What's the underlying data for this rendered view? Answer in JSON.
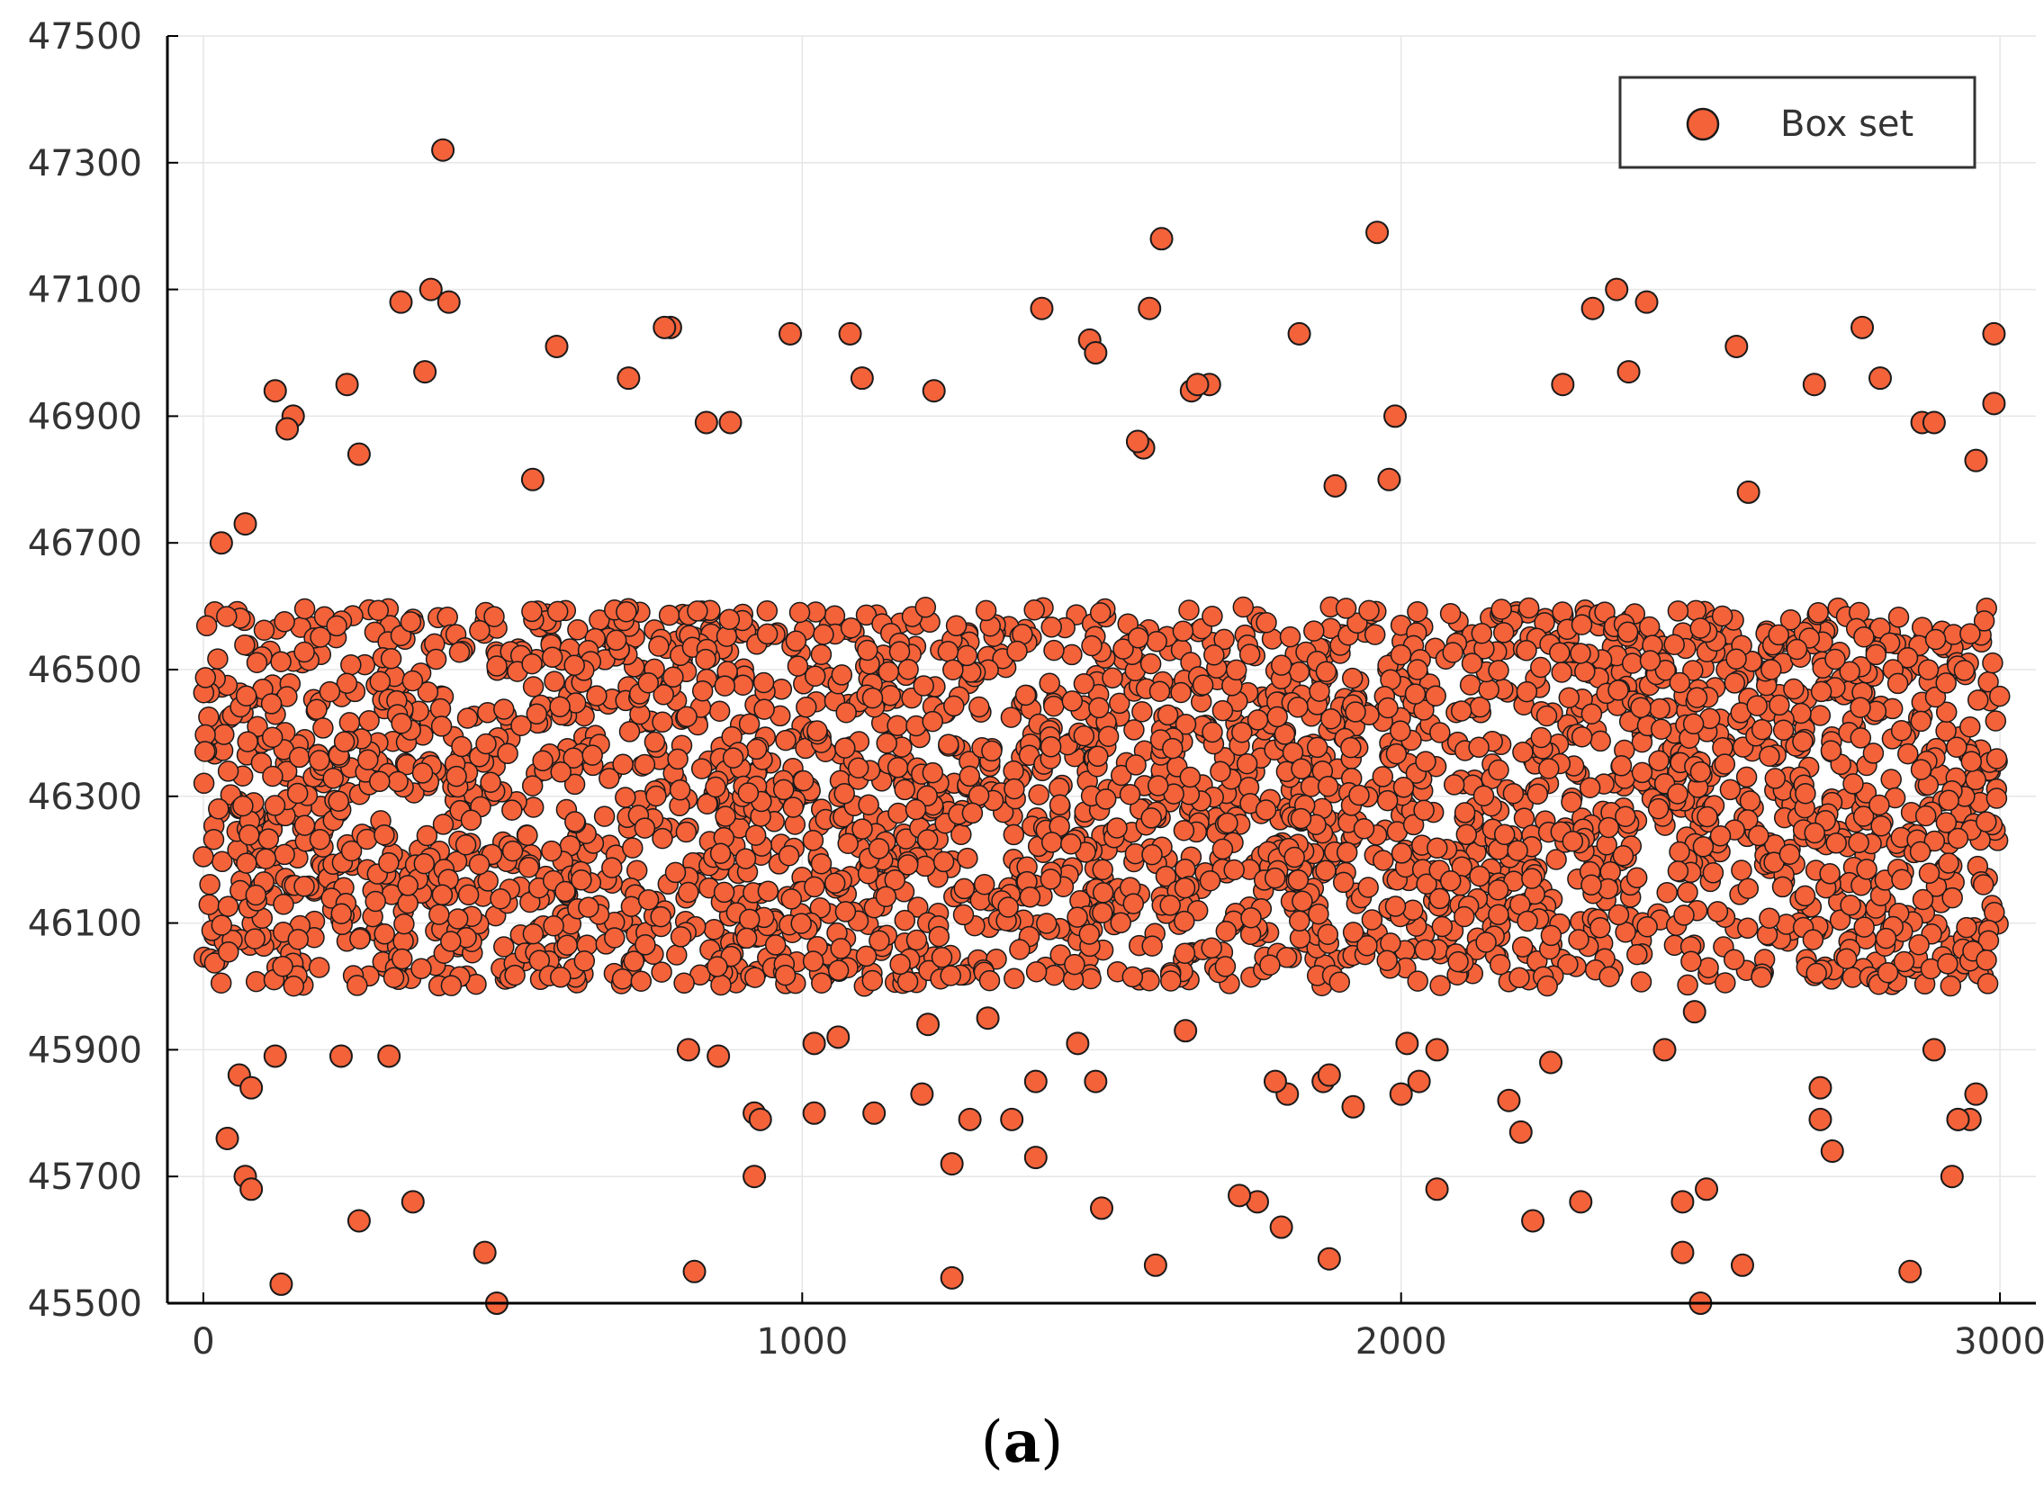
{
  "figure": {
    "caption_open": "(",
    "caption_letter": "a",
    "caption_close": ")"
  },
  "chart_data": {
    "type": "scatter",
    "title": "",
    "xlabel": "",
    "ylabel": "",
    "xlim": [
      -60,
      3060
    ],
    "ylim": [
      45500,
      47500
    ],
    "x_ticks": [
      0,
      1000,
      2000,
      3000
    ],
    "x_tick_labels": [
      "0",
      "1000",
      "2000",
      "3000"
    ],
    "y_ticks": [
      45500,
      45700,
      45900,
      46100,
      46300,
      46500,
      46700,
      46900,
      47100,
      47300,
      47500
    ],
    "y_tick_labels": [
      "45500",
      "45700",
      "45900",
      "46100",
      "46300",
      "46500",
      "46700",
      "46900",
      "47100",
      "47300",
      "47500"
    ],
    "grid": true,
    "legend_position": "top-right",
    "marker_color": "#f4623a",
    "marker_edge_color": "#1a1a1a",
    "dense_band": {
      "x_range": [
        0,
        3000
      ],
      "y_range": [
        46000,
        46600
      ],
      "approx_points": 3000,
      "note": "points distributed densely and roughly uniformly within this range"
    },
    "series": [
      {
        "name": "Box set",
        "x": [
          400,
          1960,
          1600,
          380,
          330,
          2360,
          410,
          2410,
          1580,
          2320,
          1400,
          1480,
          1490,
          780,
          2990,
          980,
          1080,
          770,
          2770,
          2560,
          1830,
          590,
          2380,
          2580,
          370,
          710,
          2800,
          1680,
          1100,
          1220,
          2690,
          1650,
          1660,
          1990,
          240,
          120,
          2270,
          2990,
          840,
          880,
          2870,
          2890,
          150,
          140,
          1980,
          550,
          1570,
          2960,
          1890,
          1560,
          260,
          30,
          70,
          60,
          80,
          130,
          1250,
          2570,
          1880,
          1800,
          1590,
          1760,
          1500,
          350,
          1810,
          2930,
          2950,
          1020,
          260,
          1250,
          1350,
          1390,
          1390,
          1120,
          1200,
          2220,
          2440,
          2180,
          2960,
          2200,
          920,
          2300,
          820,
          860,
          2510,
          2700,
          2720,
          1210,
          1920,
          490,
          470,
          2500,
          2470,
          2470,
          70,
          80,
          230,
          120,
          40,
          310,
          1730,
          2250,
          2920,
          2930,
          920,
          930,
          2890,
          1640,
          1790,
          1870,
          2850,
          1460,
          2010,
          2030,
          2060,
          1880,
          1280,
          1490,
          1310,
          810,
          1060,
          2060,
          2700,
          2490,
          2000,
          1020
        ],
        "y": [
          47320,
          47190,
          47180,
          47100,
          47080,
          47100,
          47080,
          47080,
          47070,
          47070,
          47070,
          47020,
          47000,
          47040,
          47030,
          47030,
          47030,
          47040,
          47040,
          47010,
          47030,
          47010,
          46970,
          46780,
          46970,
          46960,
          46960,
          46950,
          46960,
          46940,
          46950,
          46940,
          46950,
          46900,
          46950,
          46940,
          46950,
          46920,
          46890,
          46890,
          46890,
          46890,
          46900,
          46880,
          46800,
          46800,
          46850,
          46830,
          46790,
          46860,
          46840,
          46700,
          46730,
          45860,
          45840,
          45530,
          45540,
          45560,
          45570,
          45620,
          45560,
          45660,
          45650,
          45660,
          45830,
          45790,
          45790,
          45800,
          45630,
          45720,
          45790,
          45730,
          45850,
          45800,
          45830,
          45630,
          45900,
          45820,
          45830,
          45770,
          45800,
          45660,
          45550,
          45890,
          45680,
          45790,
          45740,
          45940,
          45810,
          45500,
          45580,
          45500,
          45580,
          45660,
          45700,
          45680,
          45890,
          45890,
          45760,
          45890,
          45670,
          45880,
          45700,
          45790,
          45700,
          45790,
          45900,
          45930,
          45850,
          45850,
          45550,
          45910,
          45910,
          45850,
          45680,
          45860,
          45790,
          45850,
          45950,
          45900,
          45920,
          45900,
          45840,
          45960,
          45830,
          45910
        ]
      }
    ]
  }
}
